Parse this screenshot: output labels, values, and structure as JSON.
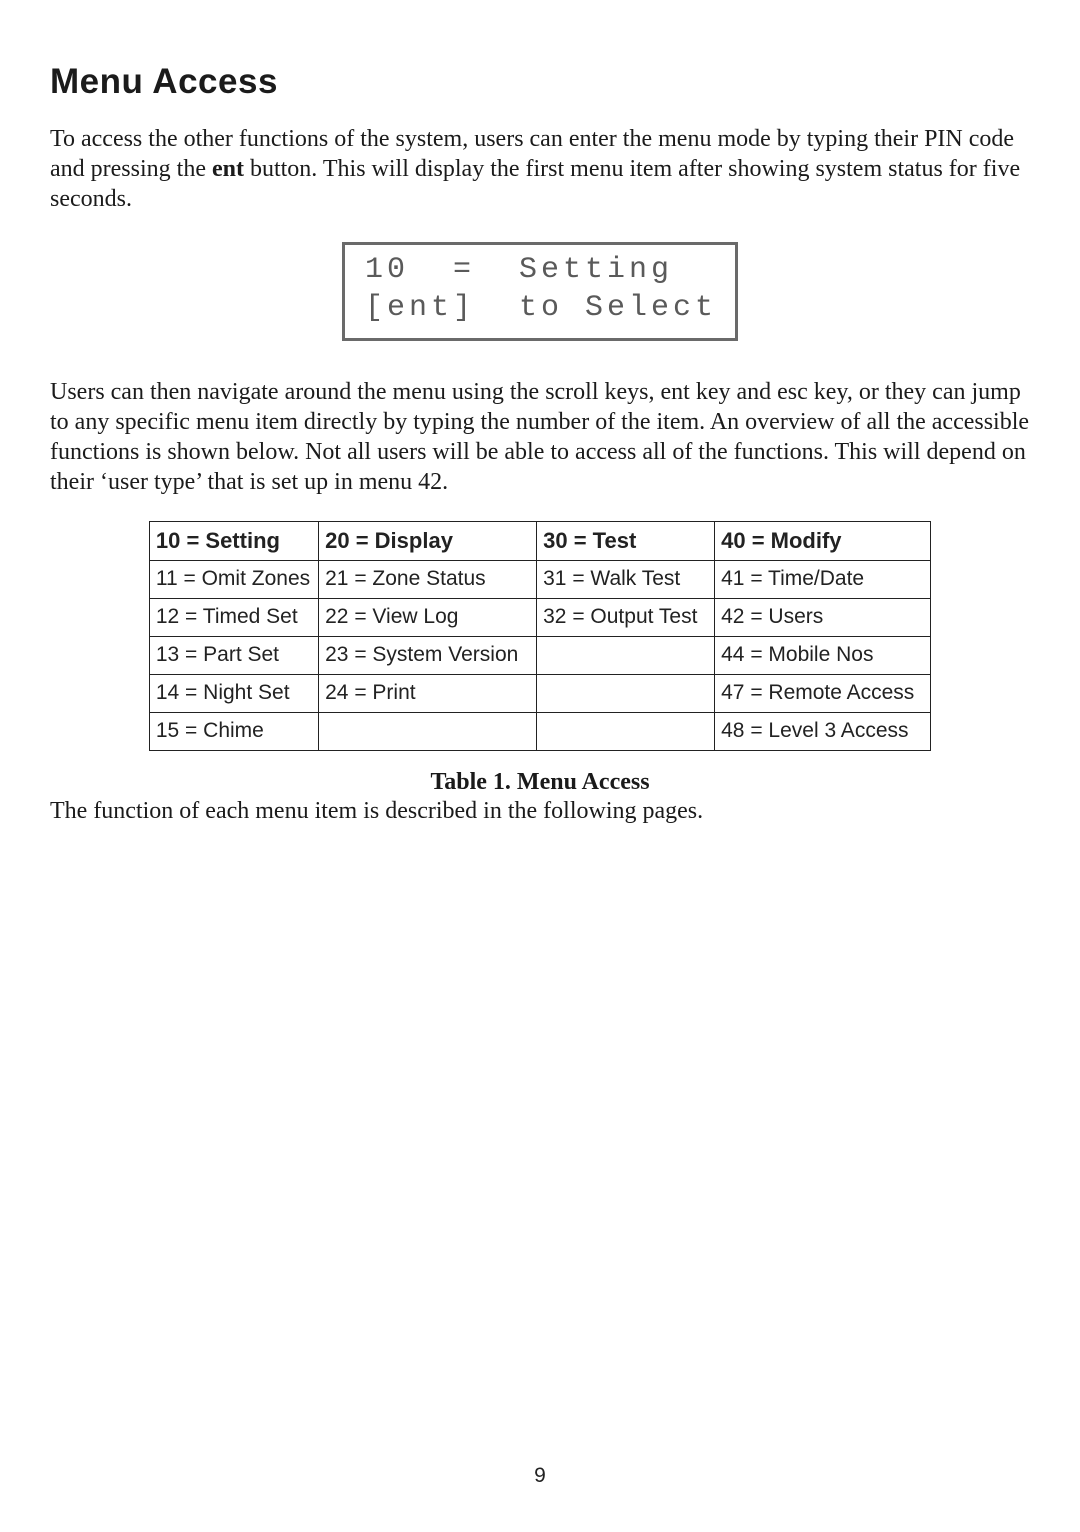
{
  "heading": "Menu Access",
  "para1_pre": "To access the other functions of the system, users can enter the menu mode by typing their PIN code and pressing the ",
  "para1_bold": "ent",
  "para1_post": " button. This will display the first menu item after showing system status for five seconds.",
  "lcd_line1": "10  =  Setting",
  "lcd_line2": "[ent]  to Select",
  "para2": "Users can then navigate around the menu using the scroll keys, ent key and esc key, or they can jump to any specific menu item directly by typing the number of the item. An overview of all the accessible functions is shown below. Not all users will be able to access all of the functions. This will depend on their ‘user type’ that is set up in menu 42.",
  "table": {
    "headers": [
      "10 = Setting",
      "20 = Display",
      "30 = Test",
      "40 = Modify"
    ],
    "header_fontsize": 22,
    "body_fontsize": 21,
    "border_color": "#222222",
    "background_color": "#ffffff",
    "rows": [
      [
        "11 = Omit Zones",
        "21 = Zone Status",
        "31 = Walk Test",
        "41 = Time/Date"
      ],
      [
        "12 = Timed Set",
        "22 = View Log",
        "32 = Output Test",
        "42 = Users"
      ],
      [
        "13 = Part Set",
        "23 = System Version",
        "",
        "44 = Mobile Nos"
      ],
      [
        "14 = Night Set",
        "24 = Print",
        "",
        "47 = Remote Access"
      ],
      [
        "15 = Chime",
        "",
        "",
        "48 = Level 3 Access"
      ]
    ]
  },
  "caption": "Table 1. Menu Access",
  "para3": "The function of each menu item is described in the following pages.",
  "page_number": "9"
}
